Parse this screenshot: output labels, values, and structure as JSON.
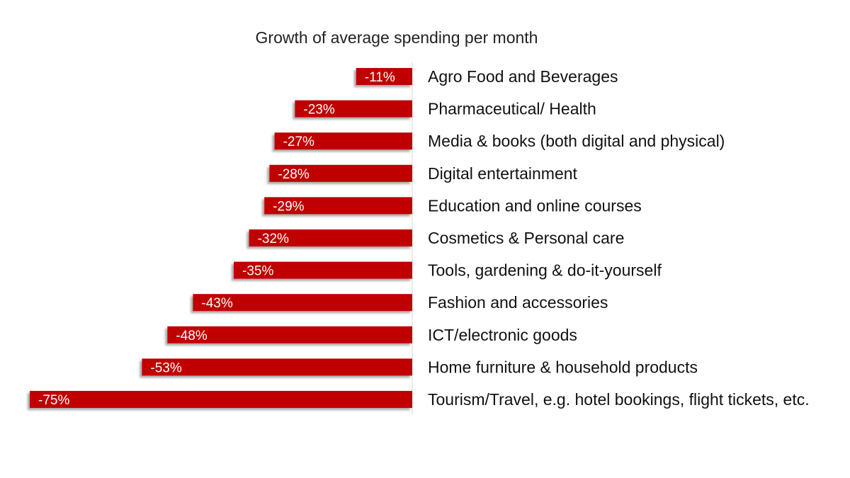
{
  "chart_data": {
    "type": "bar",
    "orientation": "horizontal",
    "title": "Growth of average spending per month",
    "categories": [
      "Agro Food and Beverages",
      "Pharmaceutical/ Health",
      "Media & books (both digital and physical)",
      "Digital entertainment",
      "Education and online courses",
      "Cosmetics & Personal care",
      "Tools, gardening & do-it-yourself",
      "Fashion and accessories",
      "ICT/electronic goods",
      "Home furniture & household products",
      "Tourism/Travel, e.g. hotel bookings, flight tickets, etc."
    ],
    "values": [
      -11,
      -23,
      -27,
      -28,
      -29,
      -32,
      -35,
      -43,
      -48,
      -53,
      -75
    ],
    "value_labels": [
      "-11%",
      "-23%",
      "-27%",
      "-28%",
      "-29%",
      "-32%",
      "-35%",
      "-43%",
      "-48%",
      "-53%",
      "-75%"
    ],
    "xlim": [
      -75,
      0
    ],
    "grid": false,
    "legend": "none",
    "bar_color": "#c00000",
    "xlabel": "",
    "ylabel": ""
  }
}
